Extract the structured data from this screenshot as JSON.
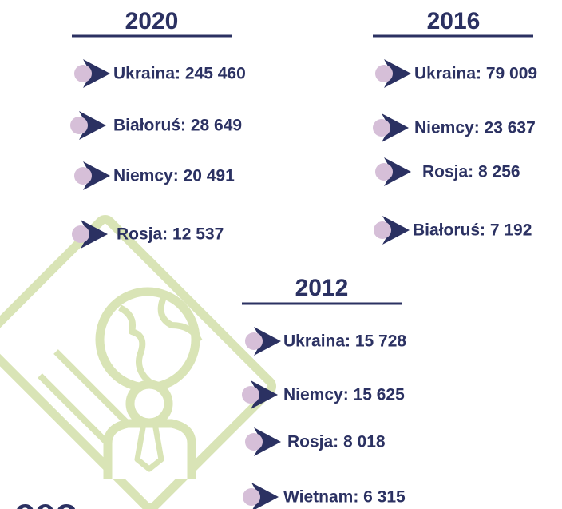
{
  "sections": [
    {
      "year": "2020",
      "items": [
        "Ukraina: 245 460",
        "Białoruś: 28 649",
        "Niemcy: 20 491",
        "Rosja: 12 537"
      ]
    },
    {
      "year": "2016",
      "items": [
        "Ukraina: 79 009",
        "Niemcy: 23 637",
        "Rosja: 8 256",
        "Białoruś: 7 192"
      ]
    },
    {
      "year": "2012",
      "items": [
        "Ukraina: 15 728",
        "Niemcy: 15 625",
        "Rosja: 8 018",
        "Wietnam: 6 315"
      ]
    }
  ],
  "logo": "ceo"
}
